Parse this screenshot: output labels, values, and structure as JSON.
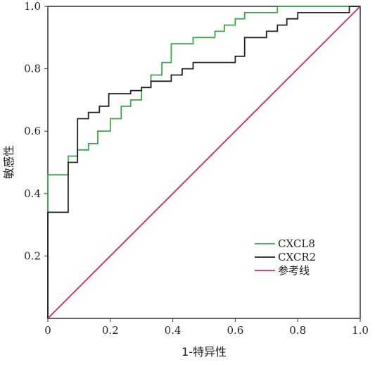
{
  "chart_data": {
    "type": "line",
    "title": "",
    "xlabel": "1-特异性",
    "ylabel": "敏感性",
    "xlim": [
      0,
      1
    ],
    "ylim": [
      0,
      1
    ],
    "xticks": [
      "0",
      "0.2",
      "0.4",
      "0.6",
      "0.8",
      "1.0"
    ],
    "yticks": [
      "0.2",
      "0.4",
      "0.6",
      "0.8",
      "1.0"
    ],
    "legend_position": "bottom-right",
    "grid": false,
    "series": [
      {
        "name": "CXCL8",
        "color": "#3aa64a",
        "step": true,
        "points": [
          [
            0,
            0
          ],
          [
            0,
            0.46
          ],
          [
            0.065,
            0.46
          ],
          [
            0.065,
            0.52
          ],
          [
            0.095,
            0.52
          ],
          [
            0.095,
            0.54
          ],
          [
            0.13,
            0.54
          ],
          [
            0.13,
            0.56
          ],
          [
            0.16,
            0.56
          ],
          [
            0.16,
            0.6
          ],
          [
            0.2,
            0.6
          ],
          [
            0.2,
            0.64
          ],
          [
            0.235,
            0.64
          ],
          [
            0.235,
            0.68
          ],
          [
            0.265,
            0.68
          ],
          [
            0.265,
            0.7
          ],
          [
            0.3,
            0.7
          ],
          [
            0.3,
            0.74
          ],
          [
            0.33,
            0.74
          ],
          [
            0.33,
            0.78
          ],
          [
            0.365,
            0.78
          ],
          [
            0.365,
            0.82
          ],
          [
            0.395,
            0.82
          ],
          [
            0.395,
            0.88
          ],
          [
            0.465,
            0.88
          ],
          [
            0.465,
            0.9
          ],
          [
            0.535,
            0.9
          ],
          [
            0.535,
            0.92
          ],
          [
            0.565,
            0.92
          ],
          [
            0.565,
            0.94
          ],
          [
            0.6,
            0.94
          ],
          [
            0.6,
            0.96
          ],
          [
            0.63,
            0.96
          ],
          [
            0.63,
            0.98
          ],
          [
            0.735,
            0.98
          ],
          [
            0.735,
            1.0
          ],
          [
            1.0,
            1.0
          ]
        ]
      },
      {
        "name": "CXCR2",
        "color": "#222222",
        "step": true,
        "points": [
          [
            0,
            0
          ],
          [
            0,
            0.34
          ],
          [
            0.065,
            0.34
          ],
          [
            0.065,
            0.5
          ],
          [
            0.095,
            0.5
          ],
          [
            0.095,
            0.64
          ],
          [
            0.13,
            0.64
          ],
          [
            0.13,
            0.66
          ],
          [
            0.165,
            0.66
          ],
          [
            0.165,
            0.68
          ],
          [
            0.195,
            0.68
          ],
          [
            0.195,
            0.72
          ],
          [
            0.265,
            0.72
          ],
          [
            0.265,
            0.73
          ],
          [
            0.3,
            0.73
          ],
          [
            0.3,
            0.74
          ],
          [
            0.33,
            0.74
          ],
          [
            0.33,
            0.76
          ],
          [
            0.395,
            0.76
          ],
          [
            0.395,
            0.78
          ],
          [
            0.43,
            0.78
          ],
          [
            0.43,
            0.8
          ],
          [
            0.465,
            0.8
          ],
          [
            0.465,
            0.82
          ],
          [
            0.6,
            0.82
          ],
          [
            0.6,
            0.84
          ],
          [
            0.63,
            0.84
          ],
          [
            0.63,
            0.9
          ],
          [
            0.7,
            0.9
          ],
          [
            0.7,
            0.92
          ],
          [
            0.735,
            0.92
          ],
          [
            0.735,
            0.94
          ],
          [
            0.765,
            0.94
          ],
          [
            0.765,
            0.96
          ],
          [
            0.8,
            0.96
          ],
          [
            0.8,
            0.98
          ],
          [
            0.965,
            0.98
          ],
          [
            0.965,
            1.0
          ],
          [
            1.0,
            1.0
          ]
        ]
      },
      {
        "name": "参考线",
        "color": "#d0285a",
        "step": false,
        "points": [
          [
            0,
            0
          ],
          [
            1,
            1
          ]
        ]
      }
    ]
  }
}
